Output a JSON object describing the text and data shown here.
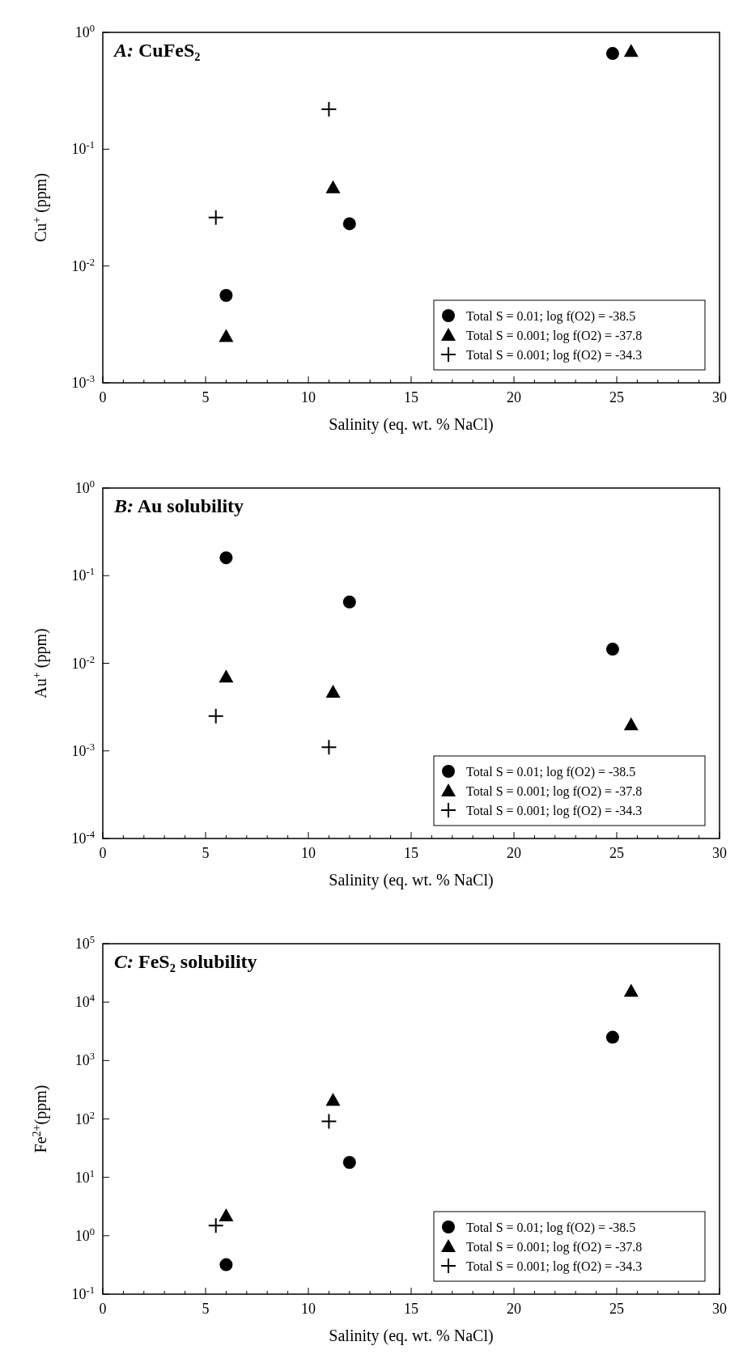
{
  "chart_data": [
    {
      "type": "scatter",
      "title": "A: CuFeS₂",
      "xlabel": "Salinity (eq. wt. % NaCl)",
      "ylabel": "Cu$^{+}$ (ppm)",
      "log": "y",
      "legend": "bottom right",
      "xlim": [
        0,
        30
      ],
      "ylim": [
        0.001,
        1
      ],
      "xticks": [
        0,
        {
          "value": 1,
          "label": null
        },
        {
          "value": 2,
          "label": null
        },
        {
          "value": 3,
          "label": null
        },
        {
          "value": 4,
          "label": null
        },
        5,
        {
          "value": 6,
          "label": null
        },
        {
          "value": 7,
          "label": null
        },
        {
          "value": 8,
          "label": null
        },
        {
          "value": 9,
          "label": null
        },
        10,
        {
          "value": 11,
          "label": null
        },
        {
          "value": 12,
          "label": null
        },
        {
          "value": 13,
          "label": null
        },
        {
          "value": 14,
          "label": null
        },
        15,
        {
          "value": 16,
          "label": null
        },
        {
          "value": 17,
          "label": null
        },
        {
          "value": 18,
          "label": null
        },
        {
          "value": 19,
          "label": null
        },
        20,
        {
          "value": 21,
          "label": null
        },
        {
          "value": 22,
          "label": null
        },
        {
          "value": 23,
          "label": null
        },
        {
          "value": 24,
          "label": null
        },
        25,
        {
          "value": 26,
          "label": null
        },
        {
          "value": 27,
          "label": null
        },
        {
          "value": 28,
          "label": null
        },
        {
          "value": 29,
          "label": null
        },
        30
      ],
      "yticks": [
        {
          "value": 0.001,
          "label": "10$^{-3}$"
        },
        {
          "value": 0.01,
          "label": "10$^{-2}$"
        },
        {
          "value": 0.1,
          "label": "10$^{-1}$"
        },
        {
          "value": 1,
          "label": "10$^{0}$"
        }
      ],
      "series": [
        {
          "name": "Total S = 0.01; log f(O2) = -38.5",
          "color": "#000000",
          "marker": "circle",
          "x": [
            6,
            12,
            24.8
          ],
          "values": [
            0.0056,
            0.023,
            0.66
          ]
        },
        {
          "name": "Total S = 0.001; log f(O2) = -37.8",
          "color": "#000000",
          "marker": "triangle",
          "x": [
            6,
            11.2,
            25.7
          ],
          "values": [
            0.0025,
            0.047,
            0.69
          ]
        },
        {
          "name": "Total S = 0.001; log f(O2) = -34.3",
          "color": "#000000",
          "marker": "cross",
          "x": [
            5.5,
            11
          ],
          "values": [
            0.026,
            0.22
          ]
        }
      ]
    },
    {
      "type": "scatter",
      "title": "B: Au solubility",
      "xlabel": "Salinity (eq. wt. % NaCl)",
      "ylabel": "Au$^{+}$ (ppm)",
      "log": "y",
      "legend": "bottom right",
      "xlim": [
        0,
        30
      ],
      "ylim": [
        0.0001,
        1
      ],
      "xticks": [
        0,
        {
          "value": 1,
          "label": null
        },
        {
          "value": 2,
          "label": null
        },
        {
          "value": 3,
          "label": null
        },
        {
          "value": 4,
          "label": null
        },
        5,
        {
          "value": 6,
          "label": null
        },
        {
          "value": 7,
          "label": null
        },
        {
          "value": 8,
          "label": null
        },
        {
          "value": 9,
          "label": null
        },
        10,
        {
          "value": 11,
          "label": null
        },
        {
          "value": 12,
          "label": null
        },
        {
          "value": 13,
          "label": null
        },
        {
          "value": 14,
          "label": null
        },
        15,
        {
          "value": 16,
          "label": null
        },
        {
          "value": 17,
          "label": null
        },
        {
          "value": 18,
          "label": null
        },
        {
          "value": 19,
          "label": null
        },
        20,
        {
          "value": 21,
          "label": null
        },
        {
          "value": 22,
          "label": null
        },
        {
          "value": 23,
          "label": null
        },
        {
          "value": 24,
          "label": null
        },
        25,
        {
          "value": 26,
          "label": null
        },
        {
          "value": 27,
          "label": null
        },
        {
          "value": 28,
          "label": null
        },
        {
          "value": 29,
          "label": null
        },
        30
      ],
      "yticks": [
        {
          "value": 0.0001,
          "label": "10$^{-4}$"
        },
        {
          "value": 0.001,
          "label": "10$^{-3}$"
        },
        {
          "value": 0.01,
          "label": "10$^{-2}$"
        },
        {
          "value": 0.1,
          "label": "10$^{-1}$"
        },
        {
          "value": 1,
          "label": "10$^{0}$"
        }
      ],
      "series": [
        {
          "name": "Total S = 0.01; log f(O2) = -38.5",
          "color": "#000000",
          "marker": "circle",
          "x": [
            6,
            12,
            24.8
          ],
          "values": [
            0.16,
            0.05,
            0.0145
          ]
        },
        {
          "name": "Total S = 0.001; log f(O2) = -37.8",
          "color": "#000000",
          "marker": "triangle",
          "x": [
            6,
            11.2,
            25.7
          ],
          "values": [
            0.007,
            0.0047,
            0.002
          ]
        },
        {
          "name": "Total S = 0.001; log f(O2) = -34.3",
          "color": "#000000",
          "marker": "cross",
          "x": [
            5.5,
            11
          ],
          "values": [
            0.0025,
            0.0011
          ]
        }
      ]
    },
    {
      "type": "scatter",
      "title": "C: FeS₂ solubility",
      "xlabel": "Salinity (eq. wt. % NaCl)",
      "ylabel": "Fe$^{2+}$(ppm)",
      "log": "y",
      "legend": "bottom right",
      "xlim": [
        0,
        30
      ],
      "ylim": [
        0.1,
        100000
      ],
      "xticks": [
        0,
        {
          "value": 1,
          "label": null
        },
        {
          "value": 2,
          "label": null
        },
        {
          "value": 3,
          "label": null
        },
        {
          "value": 4,
          "label": null
        },
        5,
        {
          "value": 6,
          "label": null
        },
        {
          "value": 7,
          "label": null
        },
        {
          "value": 8,
          "label": null
        },
        {
          "value": 9,
          "label": null
        },
        10,
        {
          "value": 11,
          "label": null
        },
        {
          "value": 12,
          "label": null
        },
        {
          "value": 13,
          "label": null
        },
        {
          "value": 14,
          "label": null
        },
        15,
        {
          "value": 16,
          "label": null
        },
        {
          "value": 17,
          "label": null
        },
        {
          "value": 18,
          "label": null
        },
        {
          "value": 19,
          "label": null
        },
        20,
        {
          "value": 21,
          "label": null
        },
        {
          "value": 22,
          "label": null
        },
        {
          "value": 23,
          "label": null
        },
        {
          "value": 24,
          "label": null
        },
        25,
        {
          "value": 26,
          "label": null
        },
        {
          "value": 27,
          "label": null
        },
        {
          "value": 28,
          "label": null
        },
        {
          "value": 29,
          "label": null
        },
        30
      ],
      "yticks": [
        {
          "value": 0.1,
          "label": "10$^{-1}$"
        },
        {
          "value": 1,
          "label": "10$^{0}$"
        },
        {
          "value": 10,
          "label": "10$^{1}$"
        },
        {
          "value": 100,
          "label": "10$^{2}$"
        },
        {
          "value": 1000,
          "label": "10$^{3}$"
        },
        {
          "value": 10000,
          "label": "10$^{4}$"
        },
        {
          "value": 100000,
          "label": "10$^{5}$"
        }
      ],
      "series": [
        {
          "name": "Total S = 0.01; log f(O2) = -38.5",
          "color": "#000000",
          "marker": "circle",
          "x": [
            6,
            12,
            24.8
          ],
          "values": [
            0.32,
            18,
            2500
          ]
        },
        {
          "name": "Total S = 0.001; log f(O2) = -37.8",
          "color": "#000000",
          "marker": "triangle",
          "x": [
            6,
            11.2,
            25.7
          ],
          "values": [
            2.2,
            210,
            15500
          ]
        },
        {
          "name": "Total S = 0.001; log f(O2) = -34.3",
          "color": "#000000",
          "marker": "cross",
          "x": [
            5.5,
            11
          ],
          "values": [
            1.5,
            91
          ]
        }
      ]
    }
  ]
}
